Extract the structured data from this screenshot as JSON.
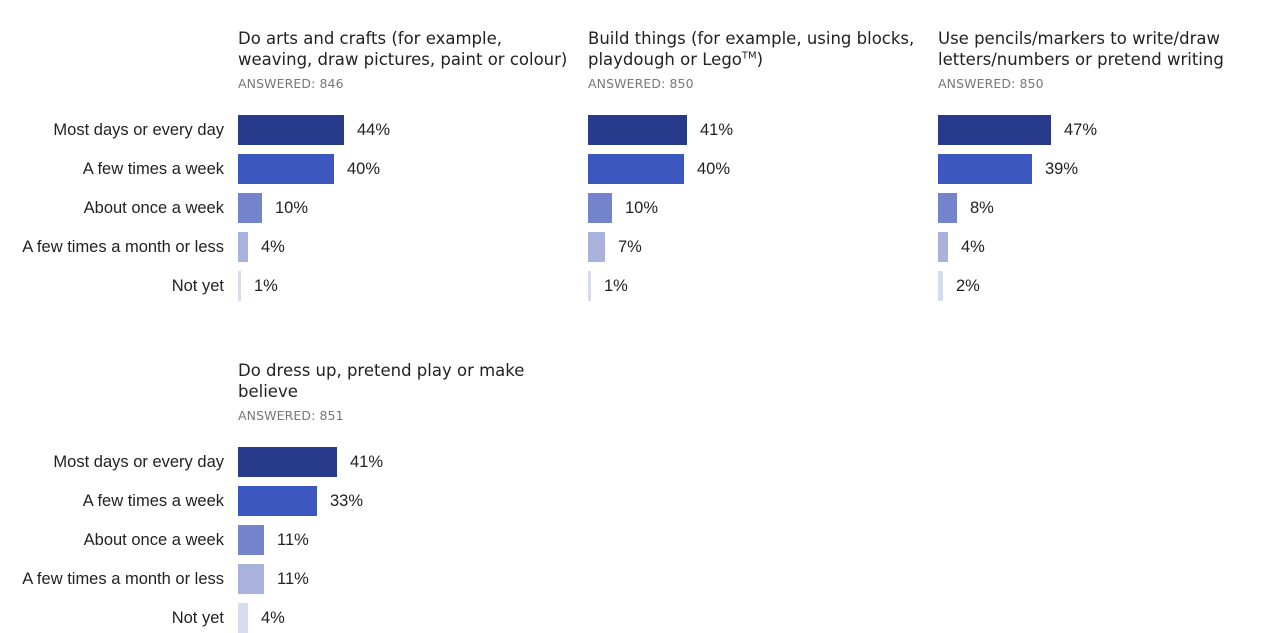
{
  "answered_prefix": "ANSWERED: ",
  "categories": [
    "Most days or every day",
    "A few times a week",
    "About once a week",
    "A few times a month or less",
    "Not yet"
  ],
  "colors": [
    "#283a8c",
    "#3c57bf",
    "#7384cc",
    "#a8b2dc",
    "#d6dbee"
  ],
  "chart_data": [
    {
      "type": "bar",
      "orientation": "horizontal",
      "title": "Do arts and crafts (for example, weaving, draw pictures, paint or colour)",
      "answered": "846",
      "categories": [
        "Most days or every day",
        "A few times a week",
        "About once a week",
        "A few times a month or less",
        "Not yet"
      ],
      "values": [
        44,
        40,
        10,
        4,
        1
      ],
      "value_labels": [
        "44%",
        "40%",
        "10%",
        "4%",
        "1%"
      ]
    },
    {
      "type": "bar",
      "orientation": "horizontal",
      "title": "Build things (for example, using blocks, playdough or Lego",
      "title_sup": "TM",
      "title_after": ")",
      "answered": "850",
      "categories": [
        "Most days or every day",
        "A few times a week",
        "About once a week",
        "A few times a month or less",
        "Not yet"
      ],
      "values": [
        41,
        40,
        10,
        7,
        1
      ],
      "value_labels": [
        "41%",
        "40%",
        "10%",
        "7%",
        "1%"
      ]
    },
    {
      "type": "bar",
      "orientation": "horizontal",
      "title": "Use pencils/markers to write/draw letters/numbers or pretend writing",
      "answered": "850",
      "categories": [
        "Most days or every day",
        "A few times a week",
        "About once a week",
        "A few times a month or less",
        "Not yet"
      ],
      "values": [
        47,
        39,
        8,
        4,
        2
      ],
      "value_labels": [
        "47%",
        "39%",
        "8%",
        "4%",
        "2%"
      ]
    },
    {
      "type": "bar",
      "orientation": "horizontal",
      "title": "Do dress up, pretend play or make believe",
      "answered": "851",
      "categories": [
        "Most days or every day",
        "A few times a week",
        "About once a week",
        "A few times a month or less",
        "Not yet"
      ],
      "values": [
        41,
        33,
        11,
        11,
        4
      ],
      "value_labels": [
        "41%",
        "33%",
        "11%",
        "11%",
        "4%"
      ]
    }
  ]
}
